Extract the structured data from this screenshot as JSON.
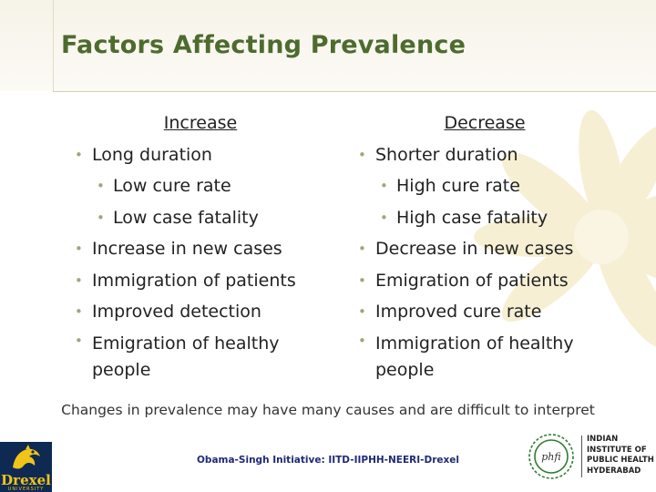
{
  "slide": {
    "title": "Factors Affecting Prevalence",
    "left": {
      "heading": "Increase",
      "items": [
        "Long duration",
        "Low cure rate",
        "Low case fatality",
        "Increase in new cases",
        "Immigration of patients",
        "Improved detection",
        "Emigration of healthy people"
      ]
    },
    "right": {
      "heading": "Decrease",
      "items": [
        "Shorter duration",
        "High cure rate",
        "High case fatality",
        "Decrease in new cases",
        "Emigration of patients",
        "Improved cure rate",
        "Immigration of healthy people"
      ]
    },
    "bullet_glyph": "•",
    "summary": "Changes in prevalence may have many causes and are difficult to interpret",
    "footer": "Obama-Singh Initiative: IITD-IIPHH-NEERI-Drexel"
  },
  "logos": {
    "drexel": {
      "name": "Drexel",
      "subtitle": "UNIVERSITY"
    },
    "iiph": {
      "lines": [
        "INDIAN",
        "INSTITUTE OF",
        "PUBLIC HEALTH",
        "HYDERABAD"
      ],
      "emblem_text": "phfi"
    }
  },
  "colors": {
    "title": "#4d6b2e",
    "bullet": "#9aa97a",
    "footer": "#1f2a78",
    "drexel_navy": "#0f2a52",
    "drexel_gold": "#f0c419",
    "decor": "#e8d89a"
  },
  "icons": [
    "drexel-dragon-icon",
    "iiph-emblem-icon",
    "flower-decoration-icon"
  ]
}
